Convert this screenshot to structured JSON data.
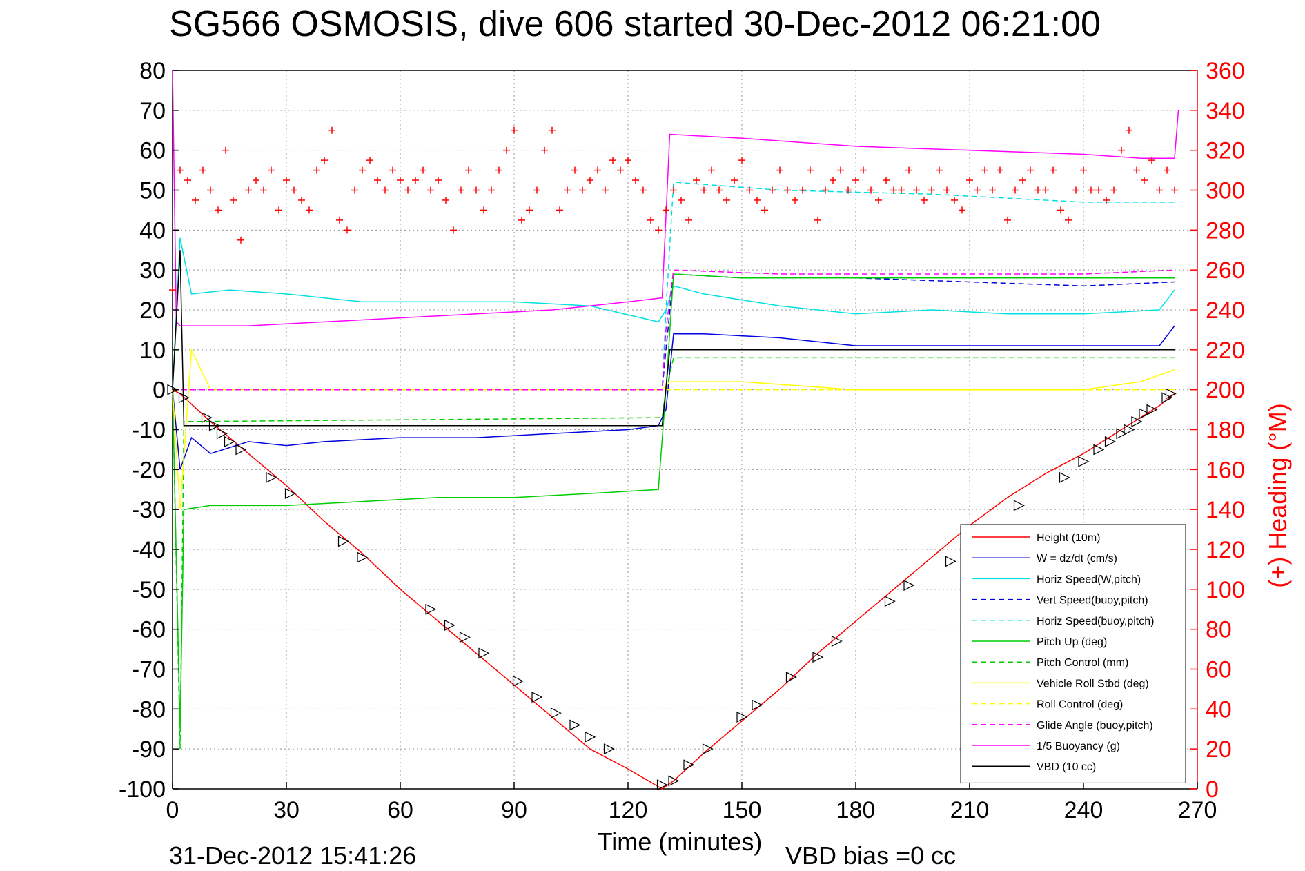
{
  "chart_data": {
    "type": "line",
    "title": "SG566 OSMOSIS, dive 606 started 30-Dec-2012 06:21:00",
    "xlabel": "Time (minutes)",
    "ylabel_right": "(+) Heading (°M)",
    "xlim": [
      0,
      270
    ],
    "ylim": [
      -100,
      80
    ],
    "ylim_right": [
      0,
      360
    ],
    "x_ticks": [
      "0",
      "30",
      "60",
      "90",
      "120",
      "150",
      "180",
      "210",
      "240",
      "270"
    ],
    "y_ticks": [
      "80",
      "70",
      "60",
      "50",
      "40",
      "30",
      "20",
      "10",
      "0",
      "-10",
      "-20",
      "-30",
      "-40",
      "-50",
      "-60",
      "-70",
      "-80",
      "-90",
      "-100"
    ],
    "y_right_ticks": [
      "360",
      "340",
      "320",
      "300",
      "280",
      "260",
      "240",
      "220",
      "200",
      "180",
      "160",
      "140",
      "120",
      "100",
      "80",
      "60",
      "40",
      "20",
      "0"
    ],
    "grid": true,
    "legend_position": "bottom-right",
    "footer_left": "31-Dec-2012 15:41:26",
    "footer_right": "VBD bias =0 cc",
    "series": [
      {
        "name": "Height (10m)",
        "color": "#ff0000",
        "style": "solid",
        "x": [
          0,
          2,
          10,
          20,
          30,
          40,
          50,
          60,
          70,
          80,
          90,
          100,
          110,
          120,
          129,
          132,
          140,
          150,
          160,
          170,
          180,
          190,
          200,
          210,
          220,
          230,
          240,
          250,
          260,
          264
        ],
        "y": [
          0,
          -1,
          -8,
          -16,
          -24,
          -33,
          -41,
          -50,
          -58,
          -66,
          -74,
          -82,
          -90,
          -95,
          -100,
          -98,
          -91,
          -83,
          -75,
          -66,
          -58,
          -50,
          -42,
          -34,
          -27,
          -21,
          -16,
          -10,
          -4,
          -1
        ]
      },
      {
        "name": "W = dz/dt (cm/s)",
        "color": "#0000dd",
        "style": "solid",
        "x": [
          0,
          2,
          5,
          10,
          20,
          30,
          40,
          60,
          80,
          100,
          120,
          128,
          130,
          132,
          140,
          160,
          180,
          200,
          220,
          240,
          260,
          264
        ],
        "y": [
          0,
          -20,
          -12,
          -16,
          -13,
          -14,
          -13,
          -12,
          -12,
          -11,
          -10,
          -9,
          -5,
          14,
          14,
          13,
          11,
          11,
          11,
          11,
          11,
          16
        ]
      },
      {
        "name": "Horiz Speed(W,pitch)",
        "color": "#00e0e0",
        "style": "solid",
        "x": [
          0,
          2,
          5,
          15,
          30,
          50,
          70,
          90,
          110,
          128,
          130,
          132,
          140,
          160,
          180,
          200,
          220,
          240,
          260,
          264
        ],
        "y": [
          0,
          38,
          24,
          25,
          24,
          22,
          22,
          22,
          21,
          17,
          20,
          26,
          24,
          21,
          19,
          20,
          19,
          19,
          20,
          25
        ]
      },
      {
        "name": "Vert Speed(buoy,pitch)",
        "color": "#0000dd",
        "style": "dashed",
        "x": [
          0,
          129,
          130,
          132,
          150,
          180,
          210,
          240,
          264
        ],
        "y": [
          0,
          0,
          10,
          29,
          28,
          28,
          27,
          26,
          27
        ]
      },
      {
        "name": "Horiz Speed(buoy,pitch)",
        "color": "#00e0e0",
        "style": "dashed",
        "x": [
          0,
          129,
          130,
          132,
          160,
          200,
          240,
          264
        ],
        "y": [
          0,
          0,
          20,
          52,
          50,
          49,
          47,
          47
        ]
      },
      {
        "name": "Pitch Up (deg)",
        "color": "#00cc00",
        "style": "solid",
        "x": [
          0,
          2,
          3,
          10,
          30,
          50,
          70,
          90,
          110,
          128,
          130,
          132,
          150,
          180,
          210,
          240,
          264
        ],
        "y": [
          0,
          -85,
          -30,
          -29,
          -29,
          -28,
          -27,
          -27,
          -26,
          -25,
          0,
          29,
          28,
          28,
          28,
          28,
          28
        ]
      },
      {
        "name": "Pitch Control (mm)",
        "color": "#00cc00",
        "style": "dashed",
        "x": [
          0,
          2,
          3,
          129,
          130,
          132,
          264
        ],
        "y": [
          0,
          -90,
          -8,
          -7,
          0,
          8,
          8
        ]
      },
      {
        "name": "Vehicle Roll Stbd (deg)",
        "color": "#ffff00",
        "style": "solid",
        "x": [
          0,
          2,
          5,
          10,
          20,
          40,
          60,
          80,
          100,
          120,
          129,
          131,
          150,
          180,
          210,
          240,
          255,
          264
        ],
        "y": [
          0,
          -30,
          10,
          0,
          0,
          0,
          0,
          0,
          0,
          0,
          0,
          2,
          2,
          0,
          0,
          0,
          2,
          5
        ]
      },
      {
        "name": "Roll Control (deg)",
        "color": "#ffff00",
        "style": "dashed",
        "x": [
          0,
          129,
          131,
          264
        ],
        "y": [
          0,
          0,
          0,
          0
        ]
      },
      {
        "name": "Glide Angle (buoy,pitch)",
        "color": "#ff00ff",
        "style": "dashed",
        "x": [
          0,
          129,
          130,
          132,
          160,
          200,
          240,
          264
        ],
        "y": [
          0,
          0,
          15,
          30,
          29,
          29,
          29,
          30
        ]
      },
      {
        "name": "1/5 Buoyancy (g)",
        "color": "#ff00ff",
        "style": "solid",
        "x": [
          0,
          1,
          2,
          20,
          40,
          60,
          80,
          100,
          120,
          129,
          131,
          150,
          180,
          210,
          240,
          255,
          264,
          265
        ],
        "y": [
          80,
          17,
          16,
          16,
          17,
          18,
          19,
          20,
          22,
          23,
          64,
          63,
          61,
          60,
          59,
          58,
          58,
          70
        ]
      },
      {
        "name": "VBD (10 cc)",
        "color": "#000000",
        "style": "solid",
        "x": [
          0,
          2,
          3,
          128,
          129,
          131,
          264
        ],
        "y": [
          0,
          35,
          -9,
          -9,
          -9,
          10,
          10
        ]
      }
    ],
    "heading_series": {
      "name": "(+) Heading",
      "color": "#ff0000",
      "marker": "+",
      "target_heading": 300,
      "x": [
        0,
        2,
        4,
        6,
        8,
        10,
        12,
        14,
        16,
        18,
        20,
        22,
        24,
        26,
        28,
        30,
        32,
        34,
        36,
        38,
        40,
        42,
        44,
        46,
        48,
        50,
        52,
        54,
        56,
        58,
        60,
        62,
        64,
        66,
        68,
        70,
        72,
        74,
        76,
        78,
        80,
        82,
        84,
        86,
        88,
        90,
        92,
        94,
        96,
        98,
        100,
        102,
        104,
        106,
        108,
        110,
        112,
        114,
        116,
        118,
        120,
        122,
        124,
        126,
        128,
        130,
        132,
        134,
        136,
        138,
        140,
        142,
        144,
        146,
        148,
        150,
        152,
        154,
        156,
        158,
        160,
        162,
        164,
        166,
        168,
        170,
        172,
        174,
        176,
        178,
        180,
        182,
        184,
        186,
        188,
        190,
        192,
        194,
        196,
        198,
        200,
        202,
        204,
        206,
        208,
        210,
        212,
        214,
        216,
        218,
        220,
        222,
        224,
        226,
        228,
        230,
        232,
        234,
        236,
        238,
        240,
        242,
        244,
        246,
        248,
        250,
        252,
        254,
        256,
        258,
        260,
        262,
        264
      ],
      "y": [
        250,
        310,
        305,
        295,
        310,
        300,
        290,
        320,
        295,
        275,
        300,
        305,
        300,
        310,
        290,
        305,
        300,
        295,
        290,
        310,
        315,
        330,
        285,
        280,
        300,
        310,
        315,
        305,
        300,
        310,
        305,
        300,
        305,
        310,
        300,
        305,
        295,
        280,
        300,
        310,
        300,
        290,
        300,
        310,
        320,
        330,
        285,
        290,
        300,
        320,
        330,
        290,
        300,
        310,
        300,
        305,
        310,
        300,
        315,
        310,
        315,
        305,
        300,
        285,
        280,
        290,
        300,
        295,
        285,
        305,
        300,
        310,
        300,
        295,
        305,
        315,
        300,
        295,
        290,
        300,
        310,
        300,
        295,
        300,
        310,
        285,
        300,
        305,
        310,
        300,
        305,
        310,
        300,
        295,
        305,
        300,
        300,
        310,
        300,
        295,
        300,
        310,
        300,
        295,
        290,
        305,
        300,
        310,
        300,
        310,
        285,
        300,
        305,
        310,
        300,
        300,
        310,
        290,
        285,
        300,
        310,
        300,
        300,
        295,
        300,
        320,
        330,
        310,
        305,
        315,
        300,
        310,
        300
      ]
    },
    "depth_markers": {
      "color": "#000000",
      "marker": "triangle",
      "x": [
        0,
        3,
        9,
        11,
        13,
        15,
        18,
        26,
        31,
        45,
        50,
        68,
        73,
        77,
        82,
        91,
        96,
        101,
        106,
        110,
        115,
        129,
        132,
        136,
        141,
        150,
        154,
        163,
        170,
        175,
        189,
        194,
        205,
        215,
        223,
        235,
        240,
        244,
        247,
        250,
        252,
        254,
        256,
        258,
        262,
        263
      ],
      "y": [
        0,
        -2,
        -7,
        -9,
        -11,
        -13,
        -15,
        -22,
        -26,
        -38,
        -42,
        -55,
        -59,
        -62,
        -66,
        -73,
        -77,
        -81,
        -84,
        -87,
        -90,
        -99,
        -98,
        -94,
        -90,
        -82,
        -79,
        -72,
        -67,
        -63,
        -53,
        -49,
        -43,
        -36,
        -29,
        -22,
        -18,
        -15,
        -13,
        -11,
        -10,
        -8,
        -6,
        -5,
        -2,
        -1
      ]
    }
  }
}
